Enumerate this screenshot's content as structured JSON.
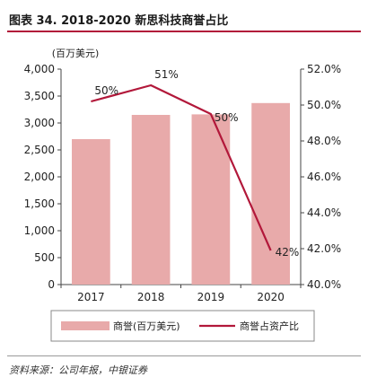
{
  "title": "图表 34. 2018-2020 新思科技商誉占比",
  "source": "资料来源：公司年报，中银证券",
  "chart_data": {
    "type": "bar",
    "categories": [
      "2017",
      "2018",
      "2019",
      "2020"
    ],
    "series": [
      {
        "name": "商誉(百万美元)",
        "type": "bar",
        "axis": "left",
        "values": [
          2700,
          3150,
          3160,
          3370
        ],
        "color": "#e8aaaa"
      },
      {
        "name": "商誉占资产比",
        "type": "line",
        "axis": "right",
        "values": [
          50.2,
          51.1,
          49.5,
          41.9
        ],
        "labels": [
          "50%",
          "51%",
          "50%",
          "42%"
        ],
        "color": "#b2183a"
      }
    ],
    "left_axis": {
      "unit_label": "(百万美元)",
      "ylim": [
        0,
        4000
      ],
      "ticks": [
        "0",
        "500",
        "1,000",
        "1,500",
        "2,000",
        "2,500",
        "3,000",
        "3,500",
        "4,000"
      ]
    },
    "right_axis": {
      "ylim": [
        40,
        52
      ],
      "ticks": [
        "40.0%",
        "42.0%",
        "44.0%",
        "46.0%",
        "48.0%",
        "50.0%",
        "52.0%"
      ]
    },
    "grid": false,
    "legend_position": "bottom"
  }
}
